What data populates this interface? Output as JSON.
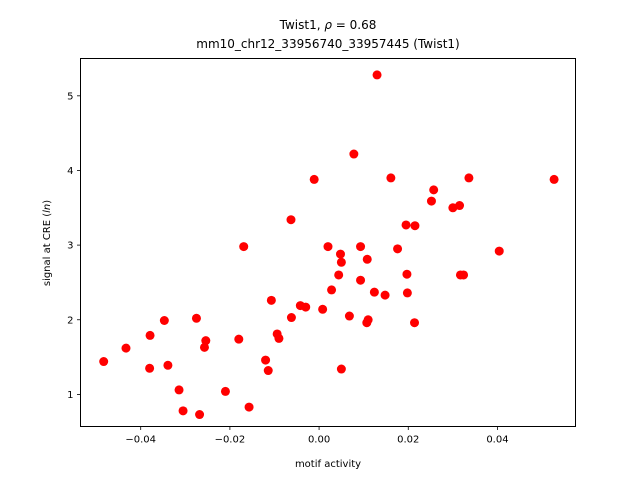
{
  "chart_data": {
    "type": "scatter",
    "title_line1_prefix": "Twist1, ",
    "title_line1_rho": "ρ",
    "title_line1_value": " = 0.68",
    "title_line2": "mm10_chr12_33956740_33957445 (Twist1)",
    "xlabel": "motif activity",
    "ylabel_prefix": "signal at CRE (",
    "ylabel_ln": "ln",
    "ylabel_suffix": ")",
    "xlim": [
      -0.0535,
      0.0575
    ],
    "ylim": [
      0.57,
      5.5
    ],
    "x_ticks": [
      -0.04,
      -0.02,
      0.0,
      0.02,
      0.04
    ],
    "x_tick_labels": [
      "−0.04",
      "−0.02",
      "0.00",
      "0.02",
      "0.04"
    ],
    "y_ticks": [
      1,
      2,
      3,
      4,
      5
    ],
    "y_tick_labels": [
      "1",
      "2",
      "3",
      "4",
      "5"
    ],
    "grid": false,
    "legend": "none",
    "marker_color": "#ff0000",
    "points": [
      {
        "x": -0.0483,
        "y": 1.44
      },
      {
        "x": -0.0433,
        "y": 1.62
      },
      {
        "x": -0.038,
        "y": 1.35
      },
      {
        "x": -0.0379,
        "y": 1.79
      },
      {
        "x": -0.0347,
        "y": 1.99
      },
      {
        "x": -0.0339,
        "y": 1.39
      },
      {
        "x": -0.0314,
        "y": 1.06
      },
      {
        "x": -0.0305,
        "y": 0.78
      },
      {
        "x": -0.0275,
        "y": 2.02
      },
      {
        "x": -0.0268,
        "y": 0.73
      },
      {
        "x": -0.0257,
        "y": 1.63
      },
      {
        "x": -0.0254,
        "y": 1.72
      },
      {
        "x": -0.021,
        "y": 1.04
      },
      {
        "x": -0.018,
        "y": 1.74
      },
      {
        "x": -0.0169,
        "y": 2.98
      },
      {
        "x": -0.0157,
        "y": 0.83
      },
      {
        "x": -0.012,
        "y": 1.46
      },
      {
        "x": -0.0114,
        "y": 1.32
      },
      {
        "x": -0.0107,
        "y": 2.26
      },
      {
        "x": -0.0094,
        "y": 1.81
      },
      {
        "x": -0.009,
        "y": 1.75
      },
      {
        "x": -0.0063,
        "y": 3.34
      },
      {
        "x": -0.0062,
        "y": 2.03
      },
      {
        "x": -0.0042,
        "y": 2.19
      },
      {
        "x": -0.003,
        "y": 2.17
      },
      {
        "x": -0.0011,
        "y": 3.88
      },
      {
        "x": 0.0008,
        "y": 2.14
      },
      {
        "x": 0.002,
        "y": 2.98
      },
      {
        "x": 0.0028,
        "y": 2.4
      },
      {
        "x": 0.0044,
        "y": 2.6
      },
      {
        "x": 0.0048,
        "y": 2.88
      },
      {
        "x": 0.005,
        "y": 1.34
      },
      {
        "x": 0.005,
        "y": 2.77
      },
      {
        "x": 0.0068,
        "y": 2.05
      },
      {
        "x": 0.0078,
        "y": 4.22
      },
      {
        "x": 0.0093,
        "y": 2.98
      },
      {
        "x": 0.0093,
        "y": 2.53
      },
      {
        "x": 0.0107,
        "y": 1.96
      },
      {
        "x": 0.0108,
        "y": 2.81
      },
      {
        "x": 0.011,
        "y": 2.0
      },
      {
        "x": 0.0124,
        "y": 2.37
      },
      {
        "x": 0.013,
        "y": 5.28
      },
      {
        "x": 0.0148,
        "y": 2.33
      },
      {
        "x": 0.0161,
        "y": 3.9
      },
      {
        "x": 0.0176,
        "y": 2.95
      },
      {
        "x": 0.0195,
        "y": 3.27
      },
      {
        "x": 0.0197,
        "y": 2.61
      },
      {
        "x": 0.0198,
        "y": 2.36
      },
      {
        "x": 0.0214,
        "y": 1.96
      },
      {
        "x": 0.0215,
        "y": 3.26
      },
      {
        "x": 0.0252,
        "y": 3.59
      },
      {
        "x": 0.0257,
        "y": 3.74
      },
      {
        "x": 0.03,
        "y": 3.5
      },
      {
        "x": 0.0315,
        "y": 3.53
      },
      {
        "x": 0.0317,
        "y": 2.6
      },
      {
        "x": 0.0324,
        "y": 2.6
      },
      {
        "x": 0.0336,
        "y": 3.9
      },
      {
        "x": 0.0404,
        "y": 2.92
      },
      {
        "x": 0.0527,
        "y": 3.88
      }
    ]
  }
}
